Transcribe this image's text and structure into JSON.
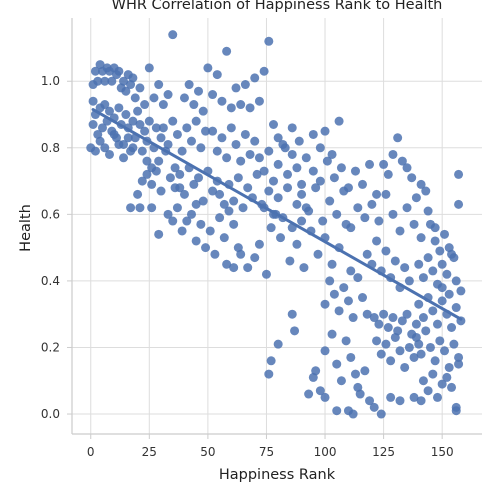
{
  "chart_data": {
    "type": "scatter",
    "title": "WHR Correlation of Happiness Rank to Health",
    "xlabel": "Happiness Rank",
    "ylabel": "Health",
    "xlim": [
      -8,
      167
    ],
    "ylim": [
      -0.06,
      1.19
    ],
    "xticks": [
      0,
      25,
      50,
      75,
      100,
      125,
      150
    ],
    "xtick_labels": [
      "0",
      "25",
      "50",
      "75",
      "100",
      "125",
      "150"
    ],
    "yticks": [
      0.0,
      0.2,
      0.4,
      0.6,
      0.8,
      1.0
    ],
    "ytick_labels": [
      "0.0",
      "0.2",
      "0.4",
      "0.6",
      "0.8",
      "1.0"
    ],
    "grid": true,
    "point_color": "#4c72b0",
    "regression_line": {
      "x": [
        1,
        158
      ],
      "y": [
        0.915,
        0.285
      ],
      "color": "#4c72b0"
    },
    "points": [
      [
        1,
        0.94
      ],
      [
        1,
        0.99
      ],
      [
        2,
        1.03
      ],
      [
        3,
        1.0
      ],
      [
        4,
        1.05
      ],
      [
        5,
        1.03
      ],
      [
        6,
        1.0
      ],
      [
        7,
        1.04
      ],
      [
        8,
        1.03
      ],
      [
        9,
        1.0
      ],
      [
        10,
        1.04
      ],
      [
        11,
        1.02
      ],
      [
        12,
        1.03
      ],
      [
        13,
        0.98
      ],
      [
        14,
        1.0
      ],
      [
        15,
        0.97
      ],
      [
        16,
        1.02
      ],
      [
        17,
        0.99
      ],
      [
        18,
        1.01
      ],
      [
        19,
        0.95
      ],
      [
        1,
        0.87
      ],
      [
        2,
        0.9
      ],
      [
        3,
        0.84
      ],
      [
        4,
        0.92
      ],
      [
        5,
        0.86
      ],
      [
        6,
        0.93
      ],
      [
        7,
        0.88
      ],
      [
        8,
        0.91
      ],
      [
        9,
        0.85
      ],
      [
        10,
        0.89
      ],
      [
        11,
        0.83
      ],
      [
        12,
        0.92
      ],
      [
        13,
        0.87
      ],
      [
        14,
        0.81
      ],
      [
        15,
        0.9
      ],
      [
        16,
        0.86
      ],
      [
        17,
        0.79
      ],
      [
        18,
        0.88
      ],
      [
        19,
        0.83
      ],
      [
        20,
        0.91
      ],
      [
        0,
        0.8
      ],
      [
        2,
        0.79
      ],
      [
        4,
        0.82
      ],
      [
        6,
        0.8
      ],
      [
        8,
        0.78
      ],
      [
        10,
        0.84
      ],
      [
        12,
        0.81
      ],
      [
        14,
        0.77
      ],
      [
        16,
        0.83
      ],
      [
        18,
        0.8
      ],
      [
        21,
        0.87
      ],
      [
        22,
        0.79
      ],
      [
        23,
        0.85
      ],
      [
        24,
        0.82
      ],
      [
        25,
        0.88
      ],
      [
        26,
        0.74
      ],
      [
        27,
        0.8
      ],
      [
        28,
        0.86
      ],
      [
        29,
        0.76
      ],
      [
        30,
        0.83
      ],
      [
        21,
        0.98
      ],
      [
        23,
        0.93
      ],
      [
        25,
        1.04
      ],
      [
        27,
        0.95
      ],
      [
        29,
        0.99
      ],
      [
        31,
        0.93
      ],
      [
        33,
        0.96
      ],
      [
        35,
        1.14
      ],
      [
        24,
        0.72
      ],
      [
        26,
        0.69
      ],
      [
        20,
        0.66
      ],
      [
        22,
        0.7
      ],
      [
        24,
        0.76
      ],
      [
        26,
        0.62
      ],
      [
        28,
        0.73
      ],
      [
        30,
        0.67
      ],
      [
        32,
        0.79
      ],
      [
        34,
        0.71
      ],
      [
        36,
        0.74
      ],
      [
        38,
        0.68
      ],
      [
        17,
        0.62
      ],
      [
        21,
        0.62
      ],
      [
        29,
        0.54
      ],
      [
        33,
        0.6
      ],
      [
        35,
        0.58
      ],
      [
        37,
        0.62
      ],
      [
        39,
        0.55
      ],
      [
        41,
        0.58
      ],
      [
        43,
        0.6
      ],
      [
        45,
        0.63
      ],
      [
        31,
        0.86
      ],
      [
        33,
        0.81
      ],
      [
        35,
        0.88
      ],
      [
        37,
        0.84
      ],
      [
        39,
        0.79
      ],
      [
        41,
        0.86
      ],
      [
        43,
        0.82
      ],
      [
        45,
        0.88
      ],
      [
        47,
        0.8
      ],
      [
        49,
        0.85
      ],
      [
        36,
        0.68
      ],
      [
        38,
        0.72
      ],
      [
        40,
        0.66
      ],
      [
        42,
        0.74
      ],
      [
        44,
        0.69
      ],
      [
        46,
        0.71
      ],
      [
        48,
        0.64
      ],
      [
        50,
        0.73
      ],
      [
        52,
        0.67
      ],
      [
        54,
        0.7
      ],
      [
        40,
        0.95
      ],
      [
        42,
        0.99
      ],
      [
        44,
        0.93
      ],
      [
        46,
        0.97
      ],
      [
        48,
        0.91
      ],
      [
        50,
        1.04
      ],
      [
        52,
        0.96
      ],
      [
        54,
        1.02
      ],
      [
        56,
        0.94
      ],
      [
        58,
        1.09
      ],
      [
        45,
        0.52
      ],
      [
        47,
        0.57
      ],
      [
        49,
        0.5
      ],
      [
        51,
        0.55
      ],
      [
        53,
        0.48
      ],
      [
        55,
        0.59
      ],
      [
        57,
        0.53
      ],
      [
        59,
        0.61
      ],
      [
        61,
        0.57
      ],
      [
        63,
        0.5
      ],
      [
        52,
        0.85
      ],
      [
        54,
        0.79
      ],
      [
        56,
        0.83
      ],
      [
        58,
        0.77
      ],
      [
        60,
        0.86
      ],
      [
        62,
        0.81
      ],
      [
        64,
        0.76
      ],
      [
        66,
        0.84
      ],
      [
        68,
        0.78
      ],
      [
        70,
        0.82
      ],
      [
        55,
        0.66
      ],
      [
        57,
        0.63
      ],
      [
        59,
        0.69
      ],
      [
        61,
        0.64
      ],
      [
        63,
        0.71
      ],
      [
        65,
        0.62
      ],
      [
        67,
        0.68
      ],
      [
        69,
        0.65
      ],
      [
        71,
        0.72
      ],
      [
        73,
        0.63
      ],
      [
        60,
        0.92
      ],
      [
        62,
        0.98
      ],
      [
        64,
        0.93
      ],
      [
        66,
        0.99
      ],
      [
        68,
        0.92
      ],
      [
        70,
        1.01
      ],
      [
        72,
        0.94
      ],
      [
        74,
        1.03
      ],
      [
        76,
        1.12
      ],
      [
        78,
        0.87
      ],
      [
        58,
        0.45
      ],
      [
        61,
        0.44
      ],
      [
        64,
        0.48
      ],
      [
        67,
        0.44
      ],
      [
        70,
        0.47
      ],
      [
        72,
        0.51
      ],
      [
        75,
        0.42
      ],
      [
        77,
        0.56
      ],
      [
        79,
        0.6
      ],
      [
        81,
        0.53
      ],
      [
        72,
        0.77
      ],
      [
        74,
        0.73
      ],
      [
        76,
        0.79
      ],
      [
        78,
        0.7
      ],
      [
        80,
        0.75
      ],
      [
        82,
        0.81
      ],
      [
        84,
        0.72
      ],
      [
        86,
        0.78
      ],
      [
        88,
        0.74
      ],
      [
        90,
        0.69
      ],
      [
        74,
        0.62
      ],
      [
        76,
        0.67
      ],
      [
        78,
        0.6
      ],
      [
        80,
        0.65
      ],
      [
        82,
        0.59
      ],
      [
        84,
        0.68
      ],
      [
        86,
        0.56
      ],
      [
        88,
        0.63
      ],
      [
        90,
        0.58
      ],
      [
        92,
        0.62
      ],
      [
        80,
        0.83
      ],
      [
        83,
        0.8
      ],
      [
        86,
        0.86
      ],
      [
        89,
        0.82
      ],
      [
        92,
        0.77
      ],
      [
        95,
        0.84
      ],
      [
        98,
        0.8
      ],
      [
        100,
        0.85
      ],
      [
        103,
        0.78
      ],
      [
        106,
        0.88
      ],
      [
        85,
        0.46
      ],
      [
        88,
        0.51
      ],
      [
        91,
        0.44
      ],
      [
        94,
        0.55
      ],
      [
        97,
        0.48
      ],
      [
        100,
        0.53
      ],
      [
        103,
        0.45
      ],
      [
        106,
        0.5
      ],
      [
        109,
        0.57
      ],
      [
        111,
        0.43
      ],
      [
        90,
        0.66
      ],
      [
        93,
        0.61
      ],
      [
        96,
        0.68
      ],
      [
        99,
        0.58
      ],
      [
        102,
        0.64
      ],
      [
        105,
        0.6
      ],
      [
        108,
        0.67
      ],
      [
        111,
        0.56
      ],
      [
        114,
        0.62
      ],
      [
        117,
        0.59
      ],
      [
        95,
        0.73
      ],
      [
        98,
        0.7
      ],
      [
        101,
        0.76
      ],
      [
        104,
        0.71
      ],
      [
        107,
        0.74
      ],
      [
        110,
        0.68
      ],
      [
        113,
        0.73
      ],
      [
        116,
        0.69
      ],
      [
        119,
        0.75
      ],
      [
        122,
        0.66
      ],
      [
        86,
        0.3
      ],
      [
        87,
        0.25
      ],
      [
        80,
        0.21
      ],
      [
        76,
        0.12
      ],
      [
        77,
        0.16
      ],
      [
        93,
        0.06
      ],
      [
        95,
        0.11
      ],
      [
        98,
        0.07
      ],
      [
        100,
        0.05
      ],
      [
        96,
        0.13
      ],
      [
        100,
        0.33
      ],
      [
        102,
        0.4
      ],
      [
        104,
        0.36
      ],
      [
        106,
        0.31
      ],
      [
        108,
        0.38
      ],
      [
        110,
        0.34
      ],
      [
        112,
        0.29
      ],
      [
        114,
        0.41
      ],
      [
        116,
        0.35
      ],
      [
        118,
        0.3
      ],
      [
        100,
        0.19
      ],
      [
        103,
        0.24
      ],
      [
        105,
        0.15
      ],
      [
        107,
        0.1
      ],
      [
        109,
        0.22
      ],
      [
        111,
        0.17
      ],
      [
        113,
        0.12
      ],
      [
        115,
        0.06
      ],
      [
        117,
        0.13
      ],
      [
        119,
        0.04
      ],
      [
        110,
        0.01
      ],
      [
        112,
        0.0
      ],
      [
        105,
        0.01
      ],
      [
        114,
        0.08
      ],
      [
        121,
        0.02
      ],
      [
        124,
        0.0
      ],
      [
        128,
        0.05
      ],
      [
        132,
        0.04
      ],
      [
        138,
        0.05
      ],
      [
        141,
        0.04
      ],
      [
        118,
        0.48
      ],
      [
        120,
        0.45
      ],
      [
        122,
        0.52
      ],
      [
        124,
        0.43
      ],
      [
        126,
        0.49
      ],
      [
        128,
        0.41
      ],
      [
        130,
        0.46
      ],
      [
        132,
        0.38
      ],
      [
        134,
        0.44
      ],
      [
        136,
        0.4
      ],
      [
        120,
        0.63
      ],
      [
        123,
        0.58
      ],
      [
        126,
        0.66
      ],
      [
        129,
        0.6
      ],
      [
        132,
        0.55
      ],
      [
        135,
        0.62
      ],
      [
        138,
        0.57
      ],
      [
        141,
        0.53
      ],
      [
        144,
        0.61
      ],
      [
        147,
        0.56
      ],
      [
        121,
        0.29
      ],
      [
        123,
        0.27
      ],
      [
        125,
        0.3
      ],
      [
        127,
        0.26
      ],
      [
        129,
        0.29
      ],
      [
        131,
        0.25
      ],
      [
        133,
        0.28
      ],
      [
        135,
        0.3
      ],
      [
        137,
        0.24
      ],
      [
        139,
        0.27
      ],
      [
        122,
        0.22
      ],
      [
        124,
        0.18
      ],
      [
        126,
        0.21
      ],
      [
        128,
        0.16
      ],
      [
        130,
        0.23
      ],
      [
        132,
        0.19
      ],
      [
        134,
        0.14
      ],
      [
        136,
        0.2
      ],
      [
        138,
        0.17
      ],
      [
        140,
        0.21
      ],
      [
        125,
        0.75
      ],
      [
        127,
        0.72
      ],
      [
        129,
        0.78
      ],
      [
        131,
        0.83
      ],
      [
        133,
        0.76
      ],
      [
        135,
        0.74
      ],
      [
        137,
        0.71
      ],
      [
        139,
        0.65
      ],
      [
        141,
        0.69
      ],
      [
        143,
        0.67
      ],
      [
        140,
        0.45
      ],
      [
        142,
        0.41
      ],
      [
        144,
        0.47
      ],
      [
        146,
        0.43
      ],
      [
        148,
        0.39
      ],
      [
        150,
        0.45
      ],
      [
        152,
        0.42
      ],
      [
        154,
        0.48
      ],
      [
        156,
        0.4
      ],
      [
        158,
        0.37
      ],
      [
        140,
        0.33
      ],
      [
        142,
        0.29
      ],
      [
        144,
        0.35
      ],
      [
        146,
        0.31
      ],
      [
        148,
        0.27
      ],
      [
        150,
        0.34
      ],
      [
        152,
        0.3
      ],
      [
        154,
        0.26
      ],
      [
        156,
        0.32
      ],
      [
        158,
        0.28
      ],
      [
        139,
        0.23
      ],
      [
        141,
        0.18
      ],
      [
        143,
        0.25
      ],
      [
        145,
        0.2
      ],
      [
        147,
        0.16
      ],
      [
        149,
        0.22
      ],
      [
        151,
        0.19
      ],
      [
        153,
        0.14
      ],
      [
        155,
        0.21
      ],
      [
        157,
        0.17
      ],
      [
        142,
        0.1
      ],
      [
        144,
        0.07
      ],
      [
        146,
        0.12
      ],
      [
        148,
        0.05
      ],
      [
        150,
        0.09
      ],
      [
        152,
        0.11
      ],
      [
        154,
        0.08
      ],
      [
        156,
        0.02
      ],
      [
        156,
        0.01
      ],
      [
        157,
        0.15
      ],
      [
        145,
        0.57
      ],
      [
        147,
        0.52
      ],
      [
        149,
        0.49
      ],
      [
        151,
        0.54
      ],
      [
        153,
        0.5
      ],
      [
        155,
        0.47
      ],
      [
        157,
        0.63
      ],
      [
        157,
        0.72
      ],
      [
        150,
        0.38
      ],
      [
        153,
        0.36
      ]
    ]
  }
}
